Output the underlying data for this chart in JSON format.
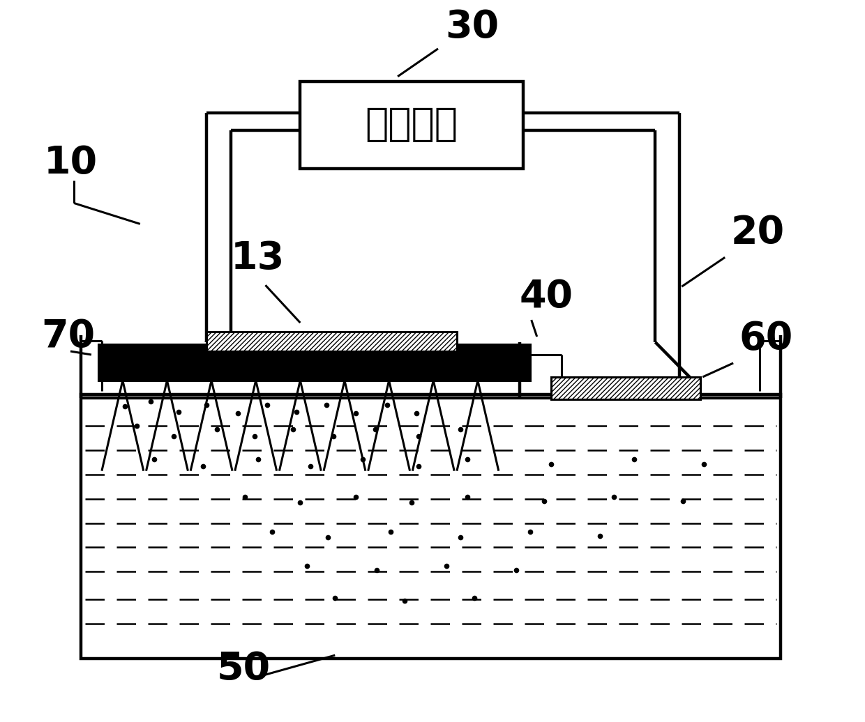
{
  "bg_color": "#ffffff",
  "line_color": "#000000",
  "box_text": "直流电源",
  "label_30": "30",
  "label_10": "10",
  "label_13": "13",
  "label_20": "20",
  "label_40": "40",
  "label_60": "60",
  "label_70": "70",
  "label_50": "50",
  "figsize": [
    12.4,
    10.36
  ],
  "dpi": 100
}
